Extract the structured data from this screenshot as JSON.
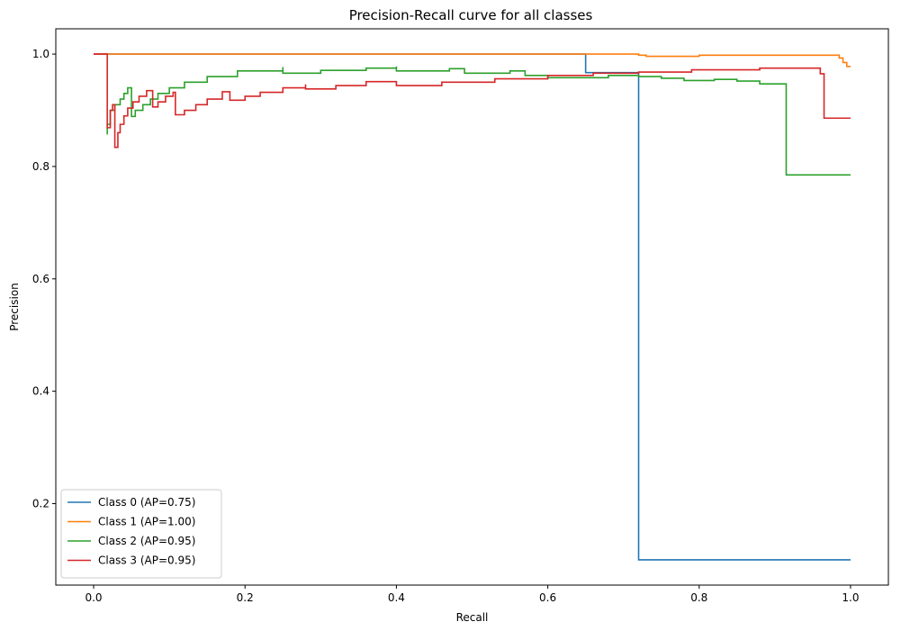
{
  "chart_data": {
    "type": "line",
    "title": "Precision-Recall curve for all classes",
    "xlabel": "Recall",
    "ylabel": "Precision",
    "xlim": [
      -0.05,
      1.05
    ],
    "ylim": [
      0.055,
      1.045
    ],
    "xticks": [
      0.0,
      0.2,
      0.4,
      0.6,
      0.8,
      1.0
    ],
    "yticks": [
      0.2,
      0.4,
      0.6,
      0.8,
      1.0
    ],
    "xtick_labels": [
      "0.0",
      "0.2",
      "0.4",
      "0.6",
      "0.8",
      "1.0"
    ],
    "ytick_labels": [
      "0.2",
      "0.4",
      "0.6",
      "0.8",
      "1.0"
    ],
    "grid": false,
    "legend_position": "lower-left",
    "step": true,
    "series": [
      {
        "name": "Class 0 (AP=0.75)",
        "color": "#1f77b4",
        "points": [
          [
            0.0,
            1.0
          ],
          [
            0.65,
            1.0
          ],
          [
            0.65,
            0.967
          ],
          [
            0.72,
            0.967
          ],
          [
            0.72,
            0.1
          ],
          [
            1.0,
            0.1
          ]
        ]
      },
      {
        "name": "Class 1 (AP=1.00)",
        "color": "#ff7f0e",
        "points": [
          [
            0.0,
            1.0
          ],
          [
            0.72,
            1.0
          ],
          [
            0.72,
            0.998
          ],
          [
            0.73,
            0.998
          ],
          [
            0.73,
            0.996
          ],
          [
            0.8,
            0.996
          ],
          [
            0.8,
            0.998
          ],
          [
            0.985,
            0.998
          ],
          [
            0.985,
            0.993
          ],
          [
            0.99,
            0.993
          ],
          [
            0.99,
            0.985
          ],
          [
            0.995,
            0.985
          ],
          [
            0.995,
            0.978
          ],
          [
            1.0,
            0.978
          ]
        ]
      },
      {
        "name": "Class 2 (AP=0.95)",
        "color": "#2ca02c",
        "points": [
          [
            0.018,
            0.857
          ],
          [
            0.018,
            0.875
          ],
          [
            0.022,
            0.875
          ],
          [
            0.022,
            0.9
          ],
          [
            0.028,
            0.9
          ],
          [
            0.028,
            0.91
          ],
          [
            0.035,
            0.91
          ],
          [
            0.035,
            0.92
          ],
          [
            0.04,
            0.92
          ],
          [
            0.04,
            0.93
          ],
          [
            0.045,
            0.93
          ],
          [
            0.045,
            0.94
          ],
          [
            0.05,
            0.94
          ],
          [
            0.05,
            0.889
          ],
          [
            0.055,
            0.889
          ],
          [
            0.055,
            0.9
          ],
          [
            0.065,
            0.9
          ],
          [
            0.065,
            0.91
          ],
          [
            0.075,
            0.91
          ],
          [
            0.075,
            0.92
          ],
          [
            0.085,
            0.92
          ],
          [
            0.085,
            0.93
          ],
          [
            0.1,
            0.93
          ],
          [
            0.1,
            0.94
          ],
          [
            0.12,
            0.94
          ],
          [
            0.12,
            0.95
          ],
          [
            0.15,
            0.95
          ],
          [
            0.15,
            0.96
          ],
          [
            0.19,
            0.96
          ],
          [
            0.19,
            0.97
          ],
          [
            0.25,
            0.97
          ],
          [
            0.25,
            0.977
          ],
          [
            0.25,
            0.966
          ],
          [
            0.3,
            0.966
          ],
          [
            0.3,
            0.971
          ],
          [
            0.36,
            0.971
          ],
          [
            0.36,
            0.975
          ],
          [
            0.4,
            0.975
          ],
          [
            0.4,
            0.978
          ],
          [
            0.4,
            0.97
          ],
          [
            0.47,
            0.97
          ],
          [
            0.47,
            0.974
          ],
          [
            0.49,
            0.974
          ],
          [
            0.49,
            0.966
          ],
          [
            0.55,
            0.966
          ],
          [
            0.55,
            0.97
          ],
          [
            0.57,
            0.97
          ],
          [
            0.57,
            0.962
          ],
          [
            0.6,
            0.962
          ],
          [
            0.6,
            0.958
          ],
          [
            0.68,
            0.958
          ],
          [
            0.68,
            0.962
          ],
          [
            0.72,
            0.962
          ],
          [
            0.72,
            0.96
          ],
          [
            0.75,
            0.96
          ],
          [
            0.75,
            0.957
          ],
          [
            0.78,
            0.957
          ],
          [
            0.78,
            0.953
          ],
          [
            0.82,
            0.953
          ],
          [
            0.82,
            0.955
          ],
          [
            0.85,
            0.955
          ],
          [
            0.85,
            0.952
          ],
          [
            0.88,
            0.952
          ],
          [
            0.88,
            0.947
          ],
          [
            0.915,
            0.947
          ],
          [
            0.915,
            0.785
          ],
          [
            1.0,
            0.785
          ]
        ]
      },
      {
        "name": "Class 3 (AP=0.95)",
        "color": "#d62728",
        "points": [
          [
            0.0,
            1.0
          ],
          [
            0.018,
            1.0
          ],
          [
            0.018,
            0.869
          ],
          [
            0.022,
            0.869
          ],
          [
            0.022,
            0.9
          ],
          [
            0.025,
            0.9
          ],
          [
            0.025,
            0.91
          ],
          [
            0.028,
            0.91
          ],
          [
            0.028,
            0.834
          ],
          [
            0.032,
            0.834
          ],
          [
            0.032,
            0.86
          ],
          [
            0.035,
            0.86
          ],
          [
            0.035,
            0.875
          ],
          [
            0.04,
            0.875
          ],
          [
            0.04,
            0.89
          ],
          [
            0.045,
            0.89
          ],
          [
            0.045,
            0.904
          ],
          [
            0.052,
            0.904
          ],
          [
            0.052,
            0.915
          ],
          [
            0.06,
            0.915
          ],
          [
            0.06,
            0.925
          ],
          [
            0.07,
            0.925
          ],
          [
            0.07,
            0.935
          ],
          [
            0.078,
            0.935
          ],
          [
            0.078,
            0.906
          ],
          [
            0.085,
            0.906
          ],
          [
            0.085,
            0.915
          ],
          [
            0.095,
            0.915
          ],
          [
            0.095,
            0.925
          ],
          [
            0.105,
            0.925
          ],
          [
            0.105,
            0.932
          ],
          [
            0.108,
            0.932
          ],
          [
            0.108,
            0.892
          ],
          [
            0.12,
            0.892
          ],
          [
            0.12,
            0.9
          ],
          [
            0.135,
            0.9
          ],
          [
            0.135,
            0.91
          ],
          [
            0.15,
            0.91
          ],
          [
            0.15,
            0.92
          ],
          [
            0.17,
            0.92
          ],
          [
            0.17,
            0.933
          ],
          [
            0.18,
            0.933
          ],
          [
            0.18,
            0.918
          ],
          [
            0.2,
            0.918
          ],
          [
            0.2,
            0.925
          ],
          [
            0.22,
            0.925
          ],
          [
            0.22,
            0.932
          ],
          [
            0.25,
            0.932
          ],
          [
            0.25,
            0.94
          ],
          [
            0.28,
            0.94
          ],
          [
            0.28,
            0.946
          ],
          [
            0.28,
            0.938
          ],
          [
            0.32,
            0.938
          ],
          [
            0.32,
            0.944
          ],
          [
            0.36,
            0.944
          ],
          [
            0.36,
            0.951
          ],
          [
            0.4,
            0.951
          ],
          [
            0.4,
            0.944
          ],
          [
            0.46,
            0.944
          ],
          [
            0.46,
            0.95
          ],
          [
            0.53,
            0.95
          ],
          [
            0.53,
            0.956
          ],
          [
            0.6,
            0.956
          ],
          [
            0.6,
            0.962
          ],
          [
            0.66,
            0.962
          ],
          [
            0.66,
            0.966
          ],
          [
            0.72,
            0.966
          ],
          [
            0.72,
            0.968
          ],
          [
            0.79,
            0.968
          ],
          [
            0.79,
            0.972
          ],
          [
            0.88,
            0.972
          ],
          [
            0.88,
            0.975
          ],
          [
            0.96,
            0.975
          ],
          [
            0.96,
            0.965
          ],
          [
            0.965,
            0.965
          ],
          [
            0.965,
            0.886
          ],
          [
            1.0,
            0.886
          ]
        ]
      }
    ]
  }
}
